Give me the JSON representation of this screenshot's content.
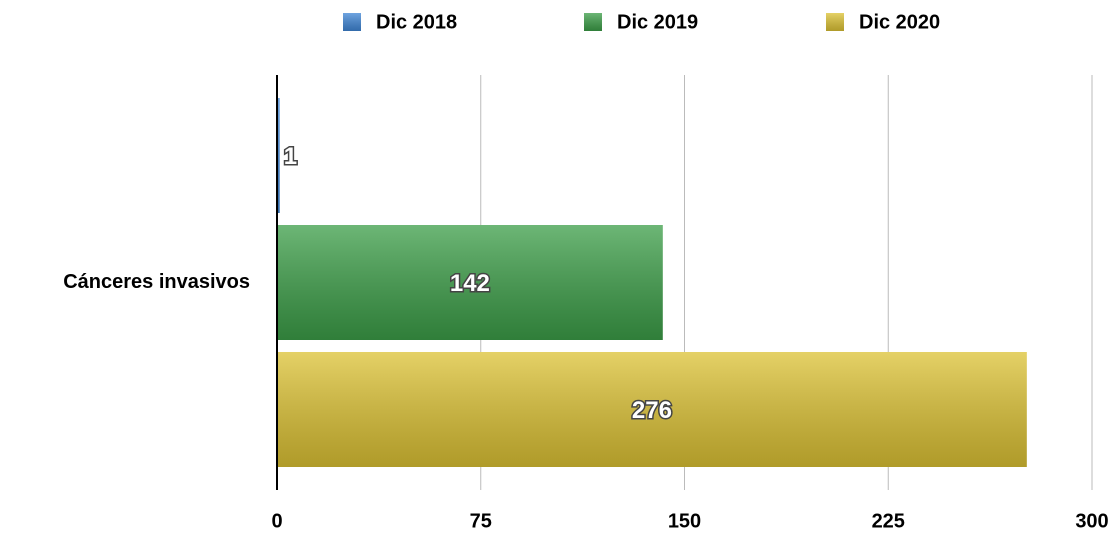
{
  "chart_data": {
    "type": "hbar",
    "categories": [
      "Cánceres invasivos"
    ],
    "series": [
      {
        "name": "Dic 2018",
        "color": "#3f86d6",
        "values": [
          1
        ]
      },
      {
        "name": "Dic 2019",
        "color": "#3c9e48",
        "values": [
          142
        ]
      },
      {
        "name": "Dic 2020",
        "color": "#dcc234",
        "values": [
          276
        ]
      }
    ],
    "xlim": [
      0,
      300
    ],
    "xticks": [
      0,
      75,
      150,
      225,
      300
    ],
    "grid": true,
    "legend": "top"
  }
}
